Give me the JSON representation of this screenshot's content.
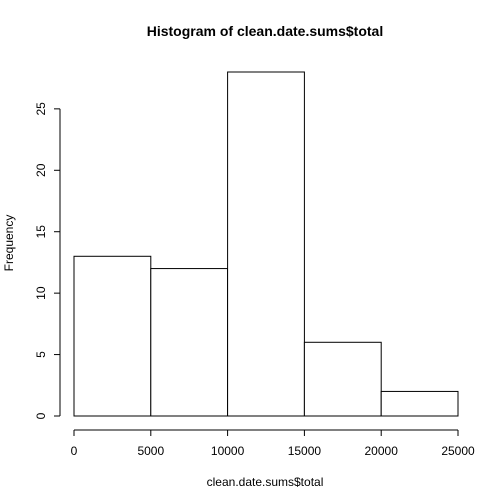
{
  "chart_data": {
    "type": "bar",
    "title": "Histogram of clean.date.sums$total",
    "xlabel": "clean.date.sums$total",
    "ylabel": "Frequency",
    "bins": [
      {
        "from": 0,
        "to": 5000,
        "count": 13
      },
      {
        "from": 5000,
        "to": 10000,
        "count": 12
      },
      {
        "from": 10000,
        "to": 15000,
        "count": 28
      },
      {
        "from": 15000,
        "to": 20000,
        "count": 6
      },
      {
        "from": 20000,
        "to": 25000,
        "count": 2
      }
    ],
    "xlim": [
      0,
      25000
    ],
    "ylim": [
      0,
      28
    ],
    "x_ticks": [
      0,
      5000,
      10000,
      15000,
      20000,
      25000
    ],
    "y_ticks": [
      0,
      5,
      10,
      15,
      20,
      25
    ],
    "grid": false,
    "bar_color": "#ffffff",
    "edge_color": "#000000"
  }
}
